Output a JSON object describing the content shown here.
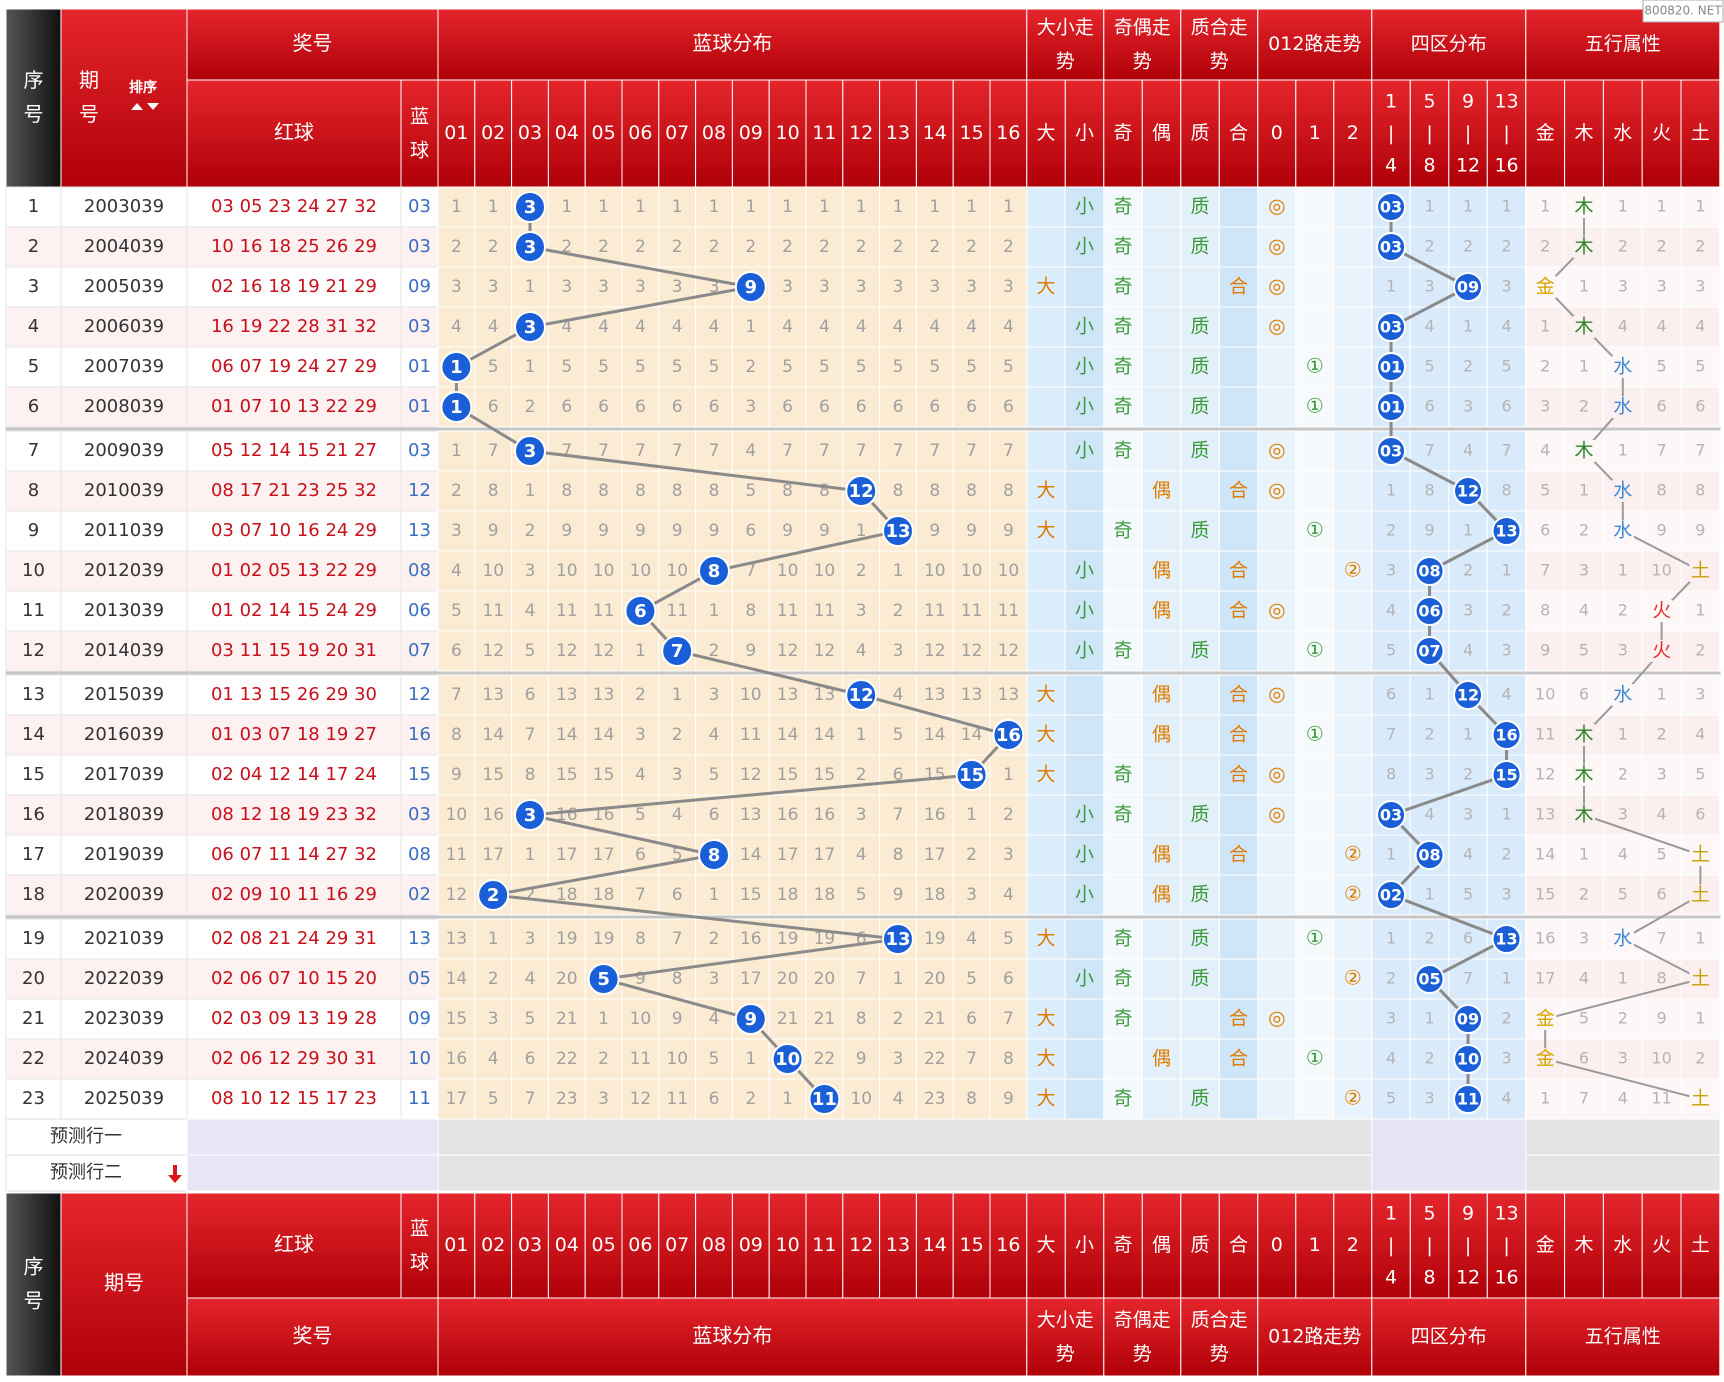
{
  "watermark": "800820. NET",
  "header": {
    "seq": "序号",
    "issue": "期号",
    "sort": "排序",
    "prize": "奖号",
    "blue_dist": "蓝球分布",
    "size_trend": "大小走势",
    "parity_trend": "奇偶走势",
    "prime_trend": "质合走势",
    "road_trend": "012路走势",
    "zone_dist": "四区分布",
    "element_attr": "五行属性",
    "red": "红球",
    "blue": "蓝球",
    "blue_cols": [
      "01",
      "02",
      "03",
      "04",
      "05",
      "06",
      "07",
      "08",
      "09",
      "10",
      "11",
      "12",
      "13",
      "14",
      "15",
      "16"
    ],
    "size_cols": [
      "大",
      "小"
    ],
    "parity_cols": [
      "奇",
      "偶"
    ],
    "prime_cols": [
      "质",
      "合"
    ],
    "road_cols": [
      "0",
      "1",
      "2"
    ],
    "zone_cols": [
      "1|4",
      "5|8",
      "9|12",
      "13|16"
    ],
    "element_cols": [
      "金",
      "木",
      "水",
      "火",
      "土"
    ]
  },
  "rows": [
    {
      "seq": 1,
      "issue": 2003039,
      "red": "03 05 23 24 27 32",
      "blue": "03",
      "blue_miss": [
        1,
        1,
        3,
        1,
        1,
        1,
        1,
        1,
        1,
        1,
        1,
        1,
        1,
        1,
        1,
        1
      ],
      "size": "小",
      "parity": "奇",
      "prime": "质",
      "road": {
        "value": 0,
        "label": "◎"
      },
      "zone": [
        "03",
        1,
        1,
        1
      ],
      "element": [
        1,
        "木",
        1,
        1,
        1
      ]
    },
    {
      "seq": 2,
      "issue": 2004039,
      "red": "10 16 18 25 26 29",
      "blue": "03",
      "blue_miss": [
        2,
        2,
        3,
        2,
        2,
        2,
        2,
        2,
        2,
        2,
        2,
        2,
        2,
        2,
        2,
        2
      ],
      "size": "小",
      "parity": "奇",
      "prime": "质",
      "road": {
        "value": 0,
        "label": "◎"
      },
      "zone": [
        "03",
        2,
        2,
        2
      ],
      "element": [
        2,
        "木",
        2,
        2,
        2
      ]
    },
    {
      "seq": 3,
      "issue": 2005039,
      "red": "02 16 18 19 21 29",
      "blue": "09",
      "blue_miss": [
        3,
        3,
        1,
        3,
        3,
        3,
        3,
        3,
        9,
        3,
        3,
        3,
        3,
        3,
        3,
        3
      ],
      "size": "大",
      "parity": "奇",
      "prime": "合",
      "road": {
        "value": 0,
        "label": "◎"
      },
      "zone": [
        1,
        3,
        "09",
        3
      ],
      "element": [
        "金",
        1,
        3,
        3,
        3
      ]
    },
    {
      "seq": 4,
      "issue": 2006039,
      "red": "16 19 22 28 31 32",
      "blue": "03",
      "blue_miss": [
        4,
        4,
        3,
        4,
        4,
        4,
        4,
        4,
        1,
        4,
        4,
        4,
        4,
        4,
        4,
        4
      ],
      "size": "小",
      "parity": "奇",
      "prime": "质",
      "road": {
        "value": 0,
        "label": "◎"
      },
      "zone": [
        "03",
        4,
        1,
        4
      ],
      "element": [
        1,
        "木",
        4,
        4,
        4
      ]
    },
    {
      "seq": 5,
      "issue": 2007039,
      "red": "06 07 19 24 27 29",
      "blue": "01",
      "blue_miss": [
        1,
        5,
        1,
        5,
        5,
        5,
        5,
        5,
        2,
        5,
        5,
        5,
        5,
        5,
        5,
        5
      ],
      "size": "小",
      "parity": "奇",
      "prime": "质",
      "road": {
        "value": 1,
        "label": "①"
      },
      "zone": [
        "01",
        5,
        2,
        5
      ],
      "element": [
        2,
        1,
        "水",
        5,
        5
      ]
    },
    {
      "seq": 6,
      "issue": 2008039,
      "red": "01 07 10 13 22 29",
      "blue": "01",
      "blue_miss": [
        1,
        6,
        2,
        6,
        6,
        6,
        6,
        6,
        3,
        6,
        6,
        6,
        6,
        6,
        6,
        6
      ],
      "size": "小",
      "parity": "奇",
      "prime": "质",
      "road": {
        "value": 1,
        "label": "①"
      },
      "zone": [
        "01",
        6,
        3,
        6
      ],
      "element": [
        3,
        2,
        "水",
        6,
        6
      ]
    },
    {
      "seq": 7,
      "issue": 2009039,
      "red": "05 12 14 15 21 27",
      "blue": "03",
      "blue_miss": [
        1,
        7,
        3,
        7,
        7,
        7,
        7,
        7,
        4,
        7,
        7,
        7,
        7,
        7,
        7,
        7
      ],
      "size": "小",
      "parity": "奇",
      "prime": "质",
      "road": {
        "value": 0,
        "label": "◎"
      },
      "zone": [
        "03",
        7,
        4,
        7
      ],
      "element": [
        4,
        "木",
        1,
        7,
        7
      ]
    },
    {
      "seq": 8,
      "issue": 2010039,
      "red": "08 17 21 23 25 32",
      "blue": "12",
      "blue_miss": [
        2,
        8,
        1,
        8,
        8,
        8,
        8,
        8,
        5,
        8,
        8,
        12,
        8,
        8,
        8,
        8
      ],
      "size": "大",
      "parity": "偶",
      "prime": "合",
      "road": {
        "value": 0,
        "label": "◎"
      },
      "zone": [
        1,
        8,
        "12",
        8
      ],
      "element": [
        5,
        1,
        "水",
        8,
        8
      ]
    },
    {
      "seq": 9,
      "issue": 2011039,
      "red": "03 07 10 16 24 29",
      "blue": "13",
      "blue_miss": [
        3,
        9,
        2,
        9,
        9,
        9,
        9,
        9,
        6,
        9,
        9,
        1,
        13,
        9,
        9,
        9
      ],
      "size": "大",
      "parity": "奇",
      "prime": "质",
      "road": {
        "value": 1,
        "label": "①"
      },
      "zone": [
        2,
        9,
        1,
        "13"
      ],
      "element": [
        6,
        2,
        "水",
        9,
        9
      ]
    },
    {
      "seq": 10,
      "issue": 2012039,
      "red": "01 02 05 13 22 29",
      "blue": "08",
      "blue_miss": [
        4,
        10,
        3,
        10,
        10,
        10,
        10,
        8,
        7,
        10,
        10,
        2,
        1,
        10,
        10,
        10
      ],
      "size": "小",
      "parity": "偶",
      "prime": "合",
      "road": {
        "value": 2,
        "label": "②"
      },
      "zone": [
        3,
        "08",
        2,
        1
      ],
      "element": [
        7,
        3,
        1,
        10,
        "土"
      ]
    },
    {
      "seq": 11,
      "issue": 2013039,
      "red": "01 02 14 15 24 29",
      "blue": "06",
      "blue_miss": [
        5,
        11,
        4,
        11,
        11,
        6,
        11,
        1,
        8,
        11,
        11,
        3,
        2,
        11,
        11,
        11
      ],
      "size": "小",
      "parity": "偶",
      "prime": "合",
      "road": {
        "value": 0,
        "label": "◎"
      },
      "zone": [
        4,
        "06",
        3,
        2
      ],
      "element": [
        8,
        4,
        2,
        "火",
        1
      ]
    },
    {
      "seq": 12,
      "issue": 2014039,
      "red": "03 11 15 19 20 31",
      "blue": "07",
      "blue_miss": [
        6,
        12,
        5,
        12,
        12,
        1,
        7,
        2,
        9,
        12,
        12,
        4,
        3,
        12,
        12,
        12
      ],
      "size": "小",
      "parity": "奇",
      "prime": "质",
      "road": {
        "value": 1,
        "label": "①"
      },
      "zone": [
        5,
        "07",
        4,
        3
      ],
      "element": [
        9,
        5,
        3,
        "火",
        2
      ]
    },
    {
      "seq": 13,
      "issue": 2015039,
      "red": "01 13 15 26 29 30",
      "blue": "12",
      "blue_miss": [
        7,
        13,
        6,
        13,
        13,
        2,
        1,
        3,
        10,
        13,
        13,
        12,
        4,
        13,
        13,
        13
      ],
      "size": "大",
      "parity": "偶",
      "prime": "合",
      "road": {
        "value": 0,
        "label": "◎"
      },
      "zone": [
        6,
        1,
        "12",
        4
      ],
      "element": [
        10,
        6,
        "水",
        1,
        3
      ]
    },
    {
      "seq": 14,
      "issue": 2016039,
      "red": "01 03 07 18 19 27",
      "blue": "16",
      "blue_miss": [
        8,
        14,
        7,
        14,
        14,
        3,
        2,
        4,
        11,
        14,
        14,
        1,
        5,
        14,
        14,
        16
      ],
      "size": "大",
      "parity": "偶",
      "prime": "合",
      "road": {
        "value": 1,
        "label": "①"
      },
      "zone": [
        7,
        2,
        1,
        "16"
      ],
      "element": [
        11,
        "木",
        1,
        2,
        4
      ]
    },
    {
      "seq": 15,
      "issue": 2017039,
      "red": "02 04 12 14 17 24",
      "blue": "15",
      "blue_miss": [
        9,
        15,
        8,
        15,
        15,
        4,
        3,
        5,
        12,
        15,
        15,
        2,
        6,
        15,
        15,
        1
      ],
      "size": "大",
      "parity": "奇",
      "prime": "合",
      "road": {
        "value": 0,
        "label": "◎"
      },
      "zone": [
        8,
        3,
        2,
        "15"
      ],
      "element": [
        12,
        "木",
        2,
        3,
        5
      ]
    },
    {
      "seq": 16,
      "issue": 2018039,
      "red": "08 12 18 19 23 32",
      "blue": "03",
      "blue_miss": [
        10,
        16,
        3,
        16,
        16,
        5,
        4,
        6,
        13,
        16,
        16,
        3,
        7,
        16,
        1,
        2
      ],
      "size": "小",
      "parity": "奇",
      "prime": "质",
      "road": {
        "value": 0,
        "label": "◎"
      },
      "zone": [
        "03",
        4,
        3,
        1
      ],
      "element": [
        13,
        "木",
        3,
        4,
        6
      ]
    },
    {
      "seq": 17,
      "issue": 2019039,
      "red": "06 07 11 14 27 32",
      "blue": "08",
      "blue_miss": [
        11,
        17,
        1,
        17,
        17,
        6,
        5,
        8,
        14,
        17,
        17,
        4,
        8,
        17,
        2,
        3
      ],
      "size": "小",
      "parity": "偶",
      "prime": "合",
      "road": {
        "value": 2,
        "label": "②"
      },
      "zone": [
        1,
        "08",
        4,
        2
      ],
      "element": [
        14,
        1,
        4,
        5,
        "土"
      ]
    },
    {
      "seq": 18,
      "issue": 2020039,
      "red": "02 09 10 11 16 29",
      "blue": "02",
      "blue_miss": [
        12,
        2,
        2,
        18,
        18,
        7,
        6,
        1,
        15,
        18,
        18,
        5,
        9,
        18,
        3,
        4
      ],
      "size": "小",
      "parity": "偶",
      "prime": "质",
      "road": {
        "value": 2,
        "label": "②"
      },
      "zone": [
        "02",
        1,
        5,
        3
      ],
      "element": [
        15,
        2,
        5,
        6,
        "土"
      ]
    },
    {
      "seq": 19,
      "issue": 2021039,
      "red": "02 08 21 24 29 31",
      "blue": "13",
      "blue_miss": [
        13,
        1,
        3,
        19,
        19,
        8,
        7,
        2,
        16,
        19,
        19,
        6,
        13,
        19,
        4,
        5
      ],
      "size": "大",
      "parity": "奇",
      "prime": "质",
      "road": {
        "value": 1,
        "label": "①"
      },
      "zone": [
        1,
        2,
        6,
        "13"
      ],
      "element": [
        16,
        3,
        "水",
        7,
        1
      ]
    },
    {
      "seq": 20,
      "issue": 2022039,
      "red": "02 06 07 10 15 20",
      "blue": "05",
      "blue_miss": [
        14,
        2,
        4,
        20,
        5,
        9,
        8,
        3,
        17,
        20,
        20,
        7,
        1,
        20,
        5,
        6
      ],
      "size": "小",
      "parity": "奇",
      "prime": "质",
      "road": {
        "value": 2,
        "label": "②"
      },
      "zone": [
        2,
        "05",
        7,
        1
      ],
      "element": [
        17,
        4,
        1,
        8,
        "土"
      ]
    },
    {
      "seq": 21,
      "issue": 2023039,
      "red": "02 03 09 13 19 28",
      "blue": "09",
      "blue_miss": [
        15,
        3,
        5,
        21,
        1,
        10,
        9,
        4,
        9,
        21,
        21,
        8,
        2,
        21,
        6,
        7
      ],
      "size": "大",
      "parity": "奇",
      "prime": "合",
      "road": {
        "value": 0,
        "label": "◎"
      },
      "zone": [
        3,
        1,
        "09",
        2
      ],
      "element": [
        "金",
        5,
        2,
        9,
        1
      ]
    },
    {
      "seq": 22,
      "issue": 2024039,
      "red": "02 06 12 29 30 31",
      "blue": "10",
      "blue_miss": [
        16,
        4,
        6,
        22,
        2,
        11,
        10,
        5,
        1,
        10,
        22,
        9,
        3,
        22,
        7,
        8
      ],
      "size": "大",
      "parity": "偶",
      "prime": "合",
      "road": {
        "value": 1,
        "label": "①"
      },
      "zone": [
        4,
        2,
        "10",
        3
      ],
      "element": [
        "金",
        6,
        3,
        10,
        2
      ]
    },
    {
      "seq": 23,
      "issue": 2025039,
      "red": "08 10 12 15 17 23",
      "blue": "11",
      "blue_miss": [
        17,
        5,
        7,
        23,
        3,
        12,
        11,
        6,
        2,
        1,
        11,
        10,
        4,
        23,
        8,
        9
      ],
      "size": "大",
      "parity": "奇",
      "prime": "质",
      "road": {
        "value": 2,
        "label": "②"
      },
      "zone": [
        5,
        3,
        "11",
        4
      ],
      "element": [
        1,
        7,
        4,
        11,
        "土"
      ]
    }
  ],
  "predict": [
    "预测行一",
    "预测行二"
  ]
}
